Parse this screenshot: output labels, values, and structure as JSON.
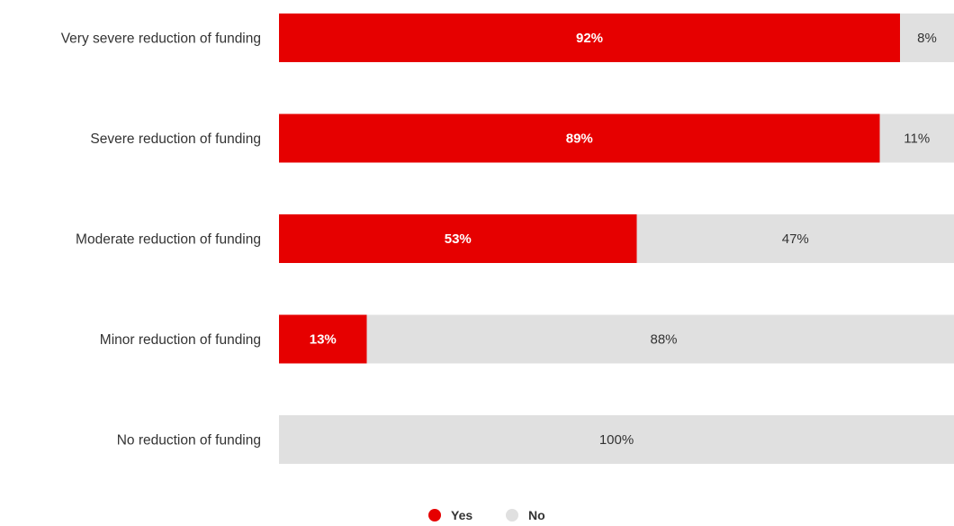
{
  "chart_data": {
    "type": "bar",
    "orientation": "horizontal",
    "stacked": true,
    "normalized_percent": true,
    "title": "",
    "xlabel": "",
    "ylabel": "",
    "xlim": [
      0,
      100
    ],
    "grid": false,
    "legend_position": "bottom-center",
    "categories": [
      "Very severe reduction of funding",
      "Severe reduction of funding",
      "Moderate reduction of funding",
      "Minor reduction of funding",
      "No reduction of funding"
    ],
    "series": [
      {
        "name": "Yes",
        "color": "#e60000",
        "values": [
          92,
          89,
          53,
          13,
          0
        ],
        "labels": [
          "92%",
          "89%",
          "53%",
          "13%",
          ""
        ]
      },
      {
        "name": "No",
        "color": "#e0e0e0",
        "values": [
          8,
          11,
          47,
          88,
          100
        ],
        "labels": [
          "8%",
          "11%",
          "47%",
          "88%",
          "100%"
        ]
      }
    ]
  }
}
